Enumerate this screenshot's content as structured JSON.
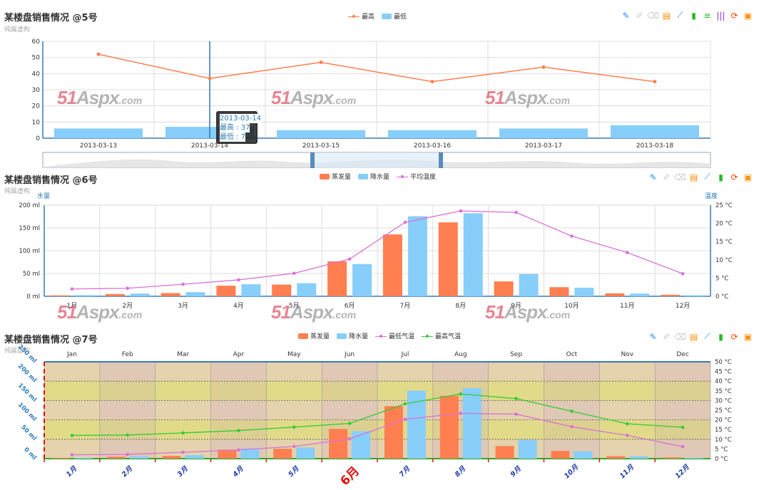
{
  "colors": {
    "orange": "#ff7f50",
    "blue": "#87cefa",
    "pink": "#da70d6",
    "green": "#32cd32",
    "axis": "#3a7ab8",
    "grid": "#dddddd",
    "darkblue": "#1a3aa8",
    "red": "#e01010"
  },
  "panels": [
    {
      "title": "某楼盘销售情况 @5号",
      "subtitle": "纯属虚构"
    },
    {
      "title": "某楼盘销售情况 @6号",
      "subtitle": "纯属虚构"
    },
    {
      "title": "某楼盘销售情况 @7号",
      "subtitle": "纯属虚构"
    }
  ],
  "watermark": {
    "brand": "51",
    "mid": "Aspx",
    ".com": ".com",
    "suffix": ".com"
  },
  "tooltip": {
    "line1": "2013-03-14",
    "line2": "最高 : 37",
    "line3": "最低 : 7"
  },
  "toolbar_icons": [
    "mark-icon",
    "mark-undo-icon",
    "mark-clear-icon",
    "data-view-icon",
    "line-chart-icon",
    "bar-chart-icon",
    "stack-icon",
    "tiled-icon",
    "restore-icon",
    "save-image-icon"
  ],
  "chart_data": [
    {
      "type": "bar",
      "categories": [
        "2013-03-13",
        "2013-03-14",
        "2013-03-15",
        "2013-03-16",
        "2013-03-17",
        "2013-03-18"
      ],
      "series": [
        {
          "name": "最高",
          "type": "line",
          "values": [
            52,
            37,
            47,
            35,
            44,
            35
          ]
        },
        {
          "name": "最低",
          "type": "bar",
          "values": [
            6,
            7,
            5,
            5,
            6,
            8
          ]
        }
      ],
      "ylim": [
        0,
        60
      ],
      "yticks": [
        "0",
        "10",
        "20",
        "30",
        "40",
        "50",
        "60"
      ],
      "legend": "top-center",
      "grid": true
    },
    {
      "type": "bar",
      "categories": [
        "1月",
        "2月",
        "3月",
        "4月",
        "5月",
        "6月",
        "7月",
        "8月",
        "9月",
        "10月",
        "11月",
        "12月"
      ],
      "series": [
        {
          "name": "蒸发量",
          "type": "bar",
          "values": [
            2.0,
            4.9,
            7.0,
            23.2,
            25.6,
            76.7,
            135.6,
            162.2,
            32.6,
            20.0,
            6.4,
            3.3
          ]
        },
        {
          "name": "降水量",
          "type": "bar",
          "values": [
            2.6,
            5.9,
            9.0,
            26.4,
            28.7,
            70.7,
            175.6,
            182.2,
            48.7,
            18.8,
            6.0,
            2.3
          ]
        },
        {
          "name": "平均温度",
          "type": "line",
          "axis": "right",
          "values": [
            2.0,
            2.2,
            3.3,
            4.5,
            6.3,
            10.2,
            20.3,
            23.4,
            23.0,
            16.5,
            12.0,
            6.2
          ]
        }
      ],
      "ylabel": "水量",
      "y2label": "温度",
      "yticks": [
        "0 ml",
        "50 ml",
        "100 ml",
        "150 ml",
        "200 ml"
      ],
      "y2ticks": [
        "0 °C",
        "5 °C",
        "10 °C",
        "15 °C",
        "20 °C",
        "25 °C"
      ],
      "ylim": [
        0,
        200
      ],
      "y2lim": [
        0,
        25
      ],
      "legend": "top-center",
      "grid": true
    },
    {
      "type": "bar",
      "categories": [
        "1月",
        "2月",
        "3月",
        "4月",
        "5月",
        "6月",
        "7月",
        "8月",
        "9月",
        "10月",
        "11月",
        "12月"
      ],
      "top_categories": [
        "Jan",
        "Feb",
        "Mar",
        "Apr",
        "May",
        "Jun",
        "Jul",
        "Aug",
        "Sep",
        "Oct",
        "Nov",
        "Dec"
      ],
      "highlight_category": "6月",
      "series": [
        {
          "name": "蒸发量",
          "type": "bar",
          "values": [
            2.0,
            4.9,
            7.0,
            23.2,
            25.6,
            76.7,
            135.6,
            162.2,
            32.6,
            20.0,
            6.4,
            3.3
          ]
        },
        {
          "name": "降水量",
          "type": "bar",
          "values": [
            2.6,
            5.9,
            9.0,
            26.4,
            28.7,
            70.7,
            175.6,
            182.2,
            48.7,
            18.8,
            6.0,
            2.3
          ]
        },
        {
          "name": "最低气温",
          "type": "line",
          "axis": "right",
          "values": [
            2.0,
            2.2,
            3.3,
            4.5,
            6.3,
            10.2,
            20.3,
            23.4,
            23.0,
            16.5,
            12.0,
            6.2
          ]
        },
        {
          "name": "最高气温",
          "type": "line",
          "axis": "right",
          "values": [
            12.0,
            12.2,
            13.3,
            14.5,
            16.3,
            18.2,
            28.3,
            33.4,
            31.0,
            24.5,
            18.0,
            16.2
          ]
        }
      ],
      "yticks": [
        "0 ml",
        "50 ml",
        "100 ml",
        "150 ml",
        "200 ml",
        "250 ml"
      ],
      "y2ticks": [
        "0 °C",
        "5 °C",
        "10 °C",
        "15 °C",
        "20 °C",
        "25 °C",
        "30 °C",
        "35 °C",
        "40 °C",
        "45 °C",
        "50 °C"
      ],
      "ylim": [
        0,
        250
      ],
      "y2lim": [
        0,
        50
      ],
      "legend": "top-center",
      "grid": true
    }
  ]
}
